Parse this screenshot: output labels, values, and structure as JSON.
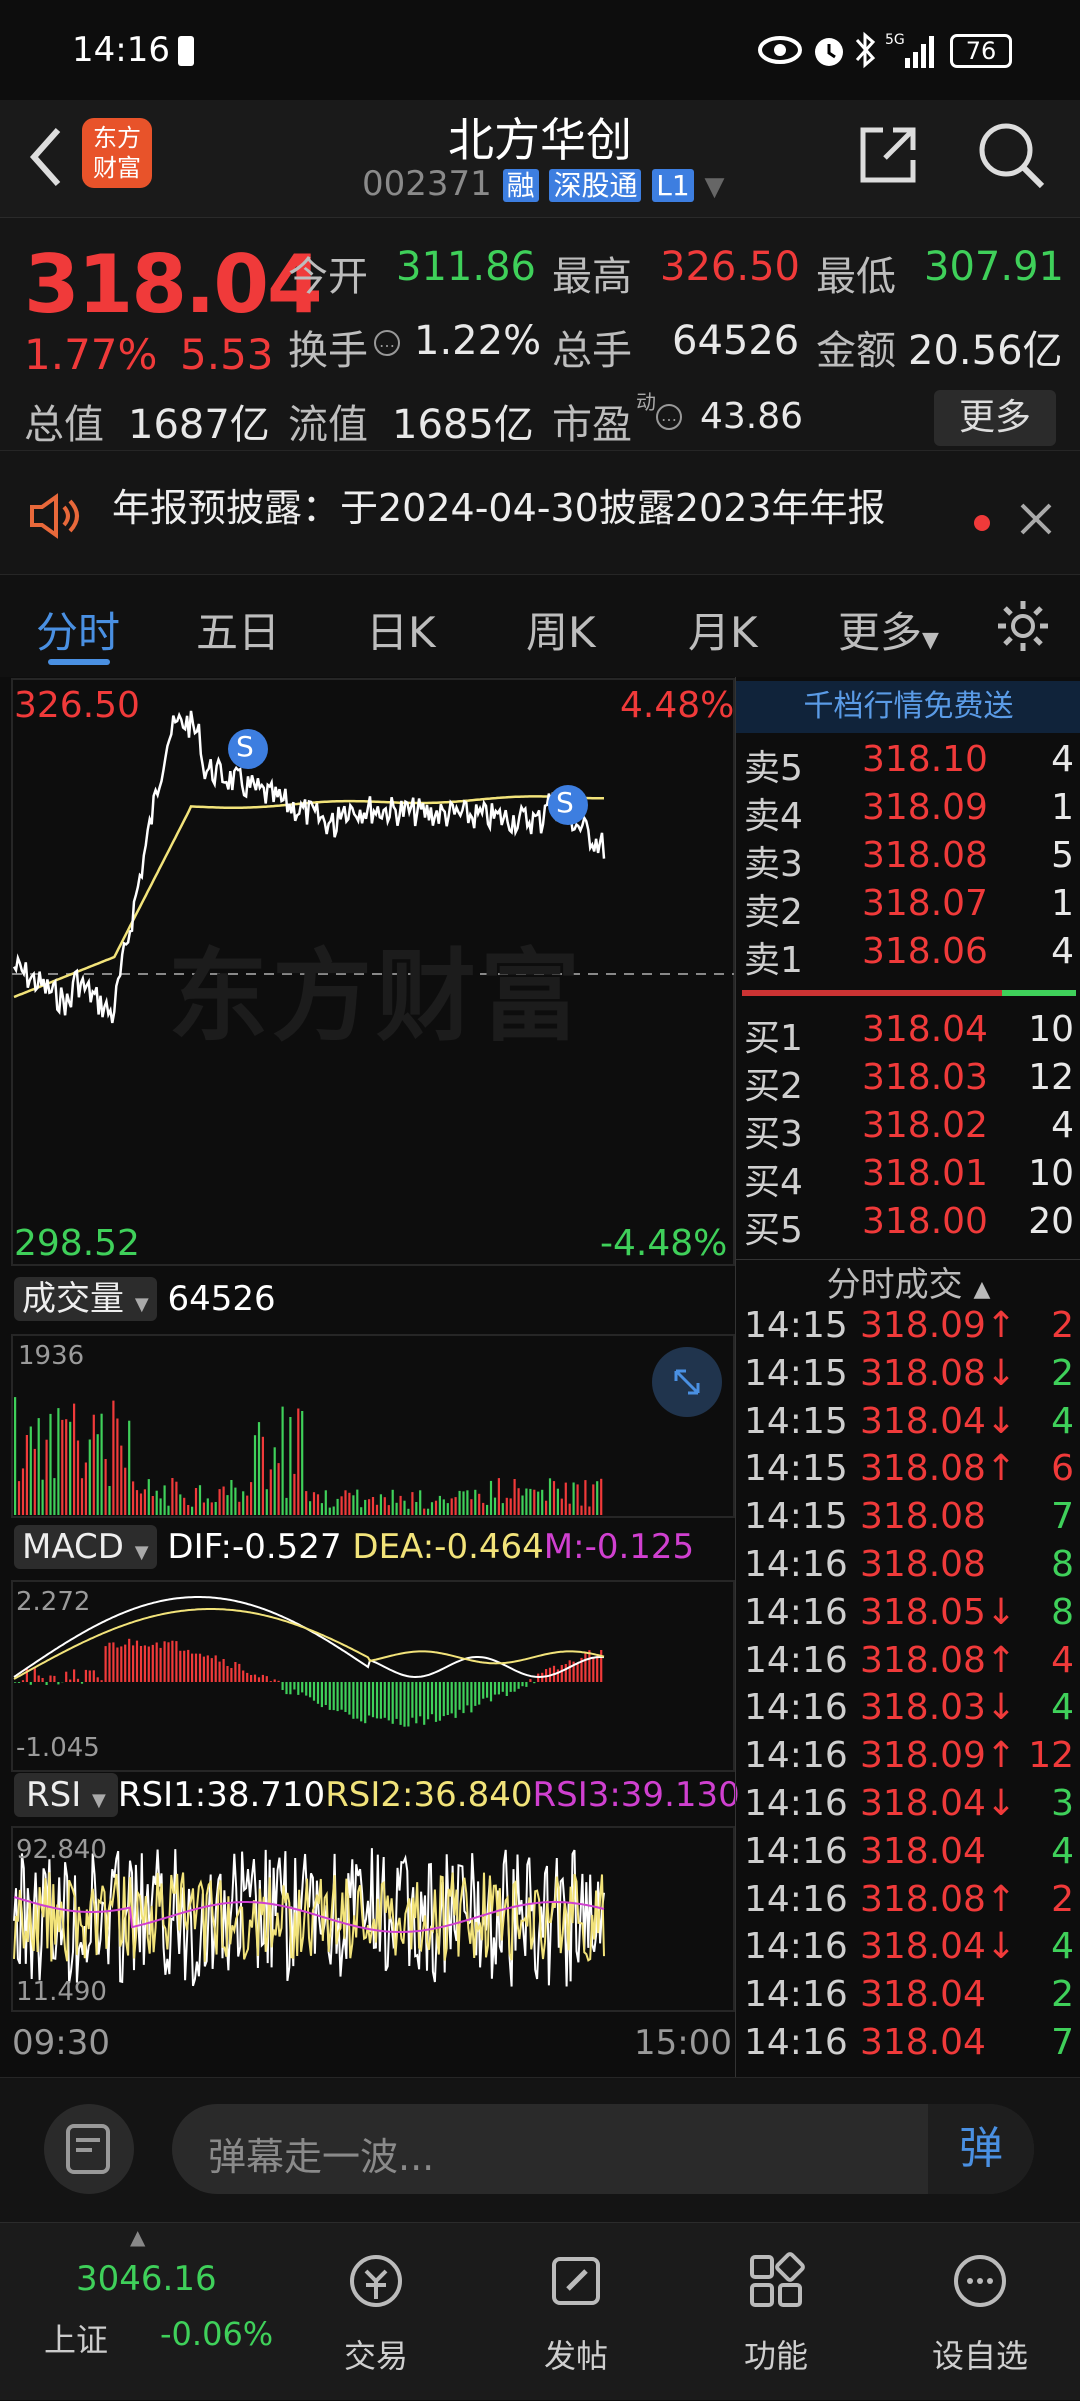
{
  "status": {
    "time": "14:16",
    "battery": "76"
  },
  "nav": {
    "title": "北方华创",
    "code": "002371",
    "tag1": "融",
    "tag2": "深股通",
    "tag3": "L1",
    "logo_line1": "东方",
    "logo_line2": "财富"
  },
  "quote": {
    "price": "318.04",
    "pct": "1.77%",
    "chg": "5.53",
    "open_label": "今开",
    "open": "311.86",
    "high_label": "最高",
    "high": "326.50",
    "low_label": "最低",
    "low": "307.91",
    "turnover_label": "换手",
    "turnover": "1.22%",
    "volume_label": "总手",
    "volume": "64526",
    "amount_label": "金额",
    "amount": "20.56亿",
    "mktcap_label": "总值",
    "mktcap": "1687亿",
    "float_label": "流值",
    "float": "1685亿",
    "pe_label": "市盈",
    "pe_sup": "动",
    "pe": "43.86",
    "more": "更多"
  },
  "notice": {
    "text": "年报预披露：于2024-04-30披露2023年年报"
  },
  "tabs": [
    "分时",
    "五日",
    "日K",
    "周K",
    "月K",
    "更多"
  ],
  "chart": {
    "price_top": "326.50",
    "pct_top": "4.48%",
    "price_bottom": "298.52",
    "pct_bottom": "-4.48%",
    "watermark": "东方财富",
    "marker": "S",
    "volume_label": "成交量",
    "volume_value": "64526",
    "volume_max": "1936",
    "macd_label": "MACD",
    "dif": "DIF:-0.527",
    "dea": "DEA:-0.464",
    "m": "M:-0.125",
    "macd_max": "2.272",
    "macd_min": "-1.045",
    "rsi_label": "RSI",
    "rsi1": "RSI1:38.710",
    "rsi2": "RSI2:36.840",
    "rsi3": "RSI3:39.130",
    "rsi_max": "92.840",
    "rsi_min": "11.490",
    "time_start": "09:30",
    "time_end": "15:00",
    "colors": {
      "price_line": "#ffffff",
      "avg_line": "#f2e37a",
      "up": "#f03a3a",
      "down": "#3fd05a",
      "macd_dea": "#f2e37a",
      "rsi3": "#d040d0"
    }
  },
  "book": {
    "banner": "千档行情免费送",
    "asks": [
      {
        "k": "卖5",
        "p": "318.10",
        "q": "4"
      },
      {
        "k": "卖4",
        "p": "318.09",
        "q": "1"
      },
      {
        "k": "卖3",
        "p": "318.08",
        "q": "5"
      },
      {
        "k": "卖2",
        "p": "318.07",
        "q": "1"
      },
      {
        "k": "卖1",
        "p": "318.06",
        "q": "4"
      }
    ],
    "bids": [
      {
        "k": "买1",
        "p": "318.04",
        "q": "10"
      },
      {
        "k": "买2",
        "p": "318.03",
        "q": "12"
      },
      {
        "k": "买3",
        "p": "318.02",
        "q": "4"
      },
      {
        "k": "买4",
        "p": "318.01",
        "q": "10"
      },
      {
        "k": "买5",
        "p": "318.00",
        "q": "20"
      }
    ],
    "trades_title": "分时成交",
    "trades": [
      {
        "t": "14:15",
        "p": "318.09↑",
        "q": "2",
        "d": "up"
      },
      {
        "t": "14:15",
        "p": "318.08↓",
        "q": "2",
        "d": "down"
      },
      {
        "t": "14:15",
        "p": "318.04↓",
        "q": "4",
        "d": "down"
      },
      {
        "t": "14:15",
        "p": "318.08↑",
        "q": "6",
        "d": "up"
      },
      {
        "t": "14:15",
        "p": "318.08",
        "q": "7",
        "d": "down"
      },
      {
        "t": "14:16",
        "p": "318.08",
        "q": "8",
        "d": "down"
      },
      {
        "t": "14:16",
        "p": "318.05↓",
        "q": "8",
        "d": "down"
      },
      {
        "t": "14:16",
        "p": "318.08↑",
        "q": "4",
        "d": "up"
      },
      {
        "t": "14:16",
        "p": "318.03↓",
        "q": "4",
        "d": "down"
      },
      {
        "t": "14:16",
        "p": "318.09↑",
        "q": "12",
        "d": "up"
      },
      {
        "t": "14:16",
        "p": "318.04↓",
        "q": "3",
        "d": "down"
      },
      {
        "t": "14:16",
        "p": "318.04",
        "q": "4",
        "d": "down"
      },
      {
        "t": "14:16",
        "p": "318.08↑",
        "q": "2",
        "d": "up"
      },
      {
        "t": "14:16",
        "p": "318.04↓",
        "q": "4",
        "d": "down"
      },
      {
        "t": "14:16",
        "p": "318.04",
        "q": "2",
        "d": "down"
      },
      {
        "t": "14:16",
        "p": "318.04",
        "q": "7",
        "d": "down"
      }
    ]
  },
  "comment": {
    "placeholder": "弹幕走一波...",
    "danmu": "弹"
  },
  "tabbar": {
    "index_value": "3046.16",
    "index_name": "上证",
    "index_pct": "-0.06%",
    "items": [
      "交易",
      "发帖",
      "功能",
      "设自选"
    ]
  }
}
